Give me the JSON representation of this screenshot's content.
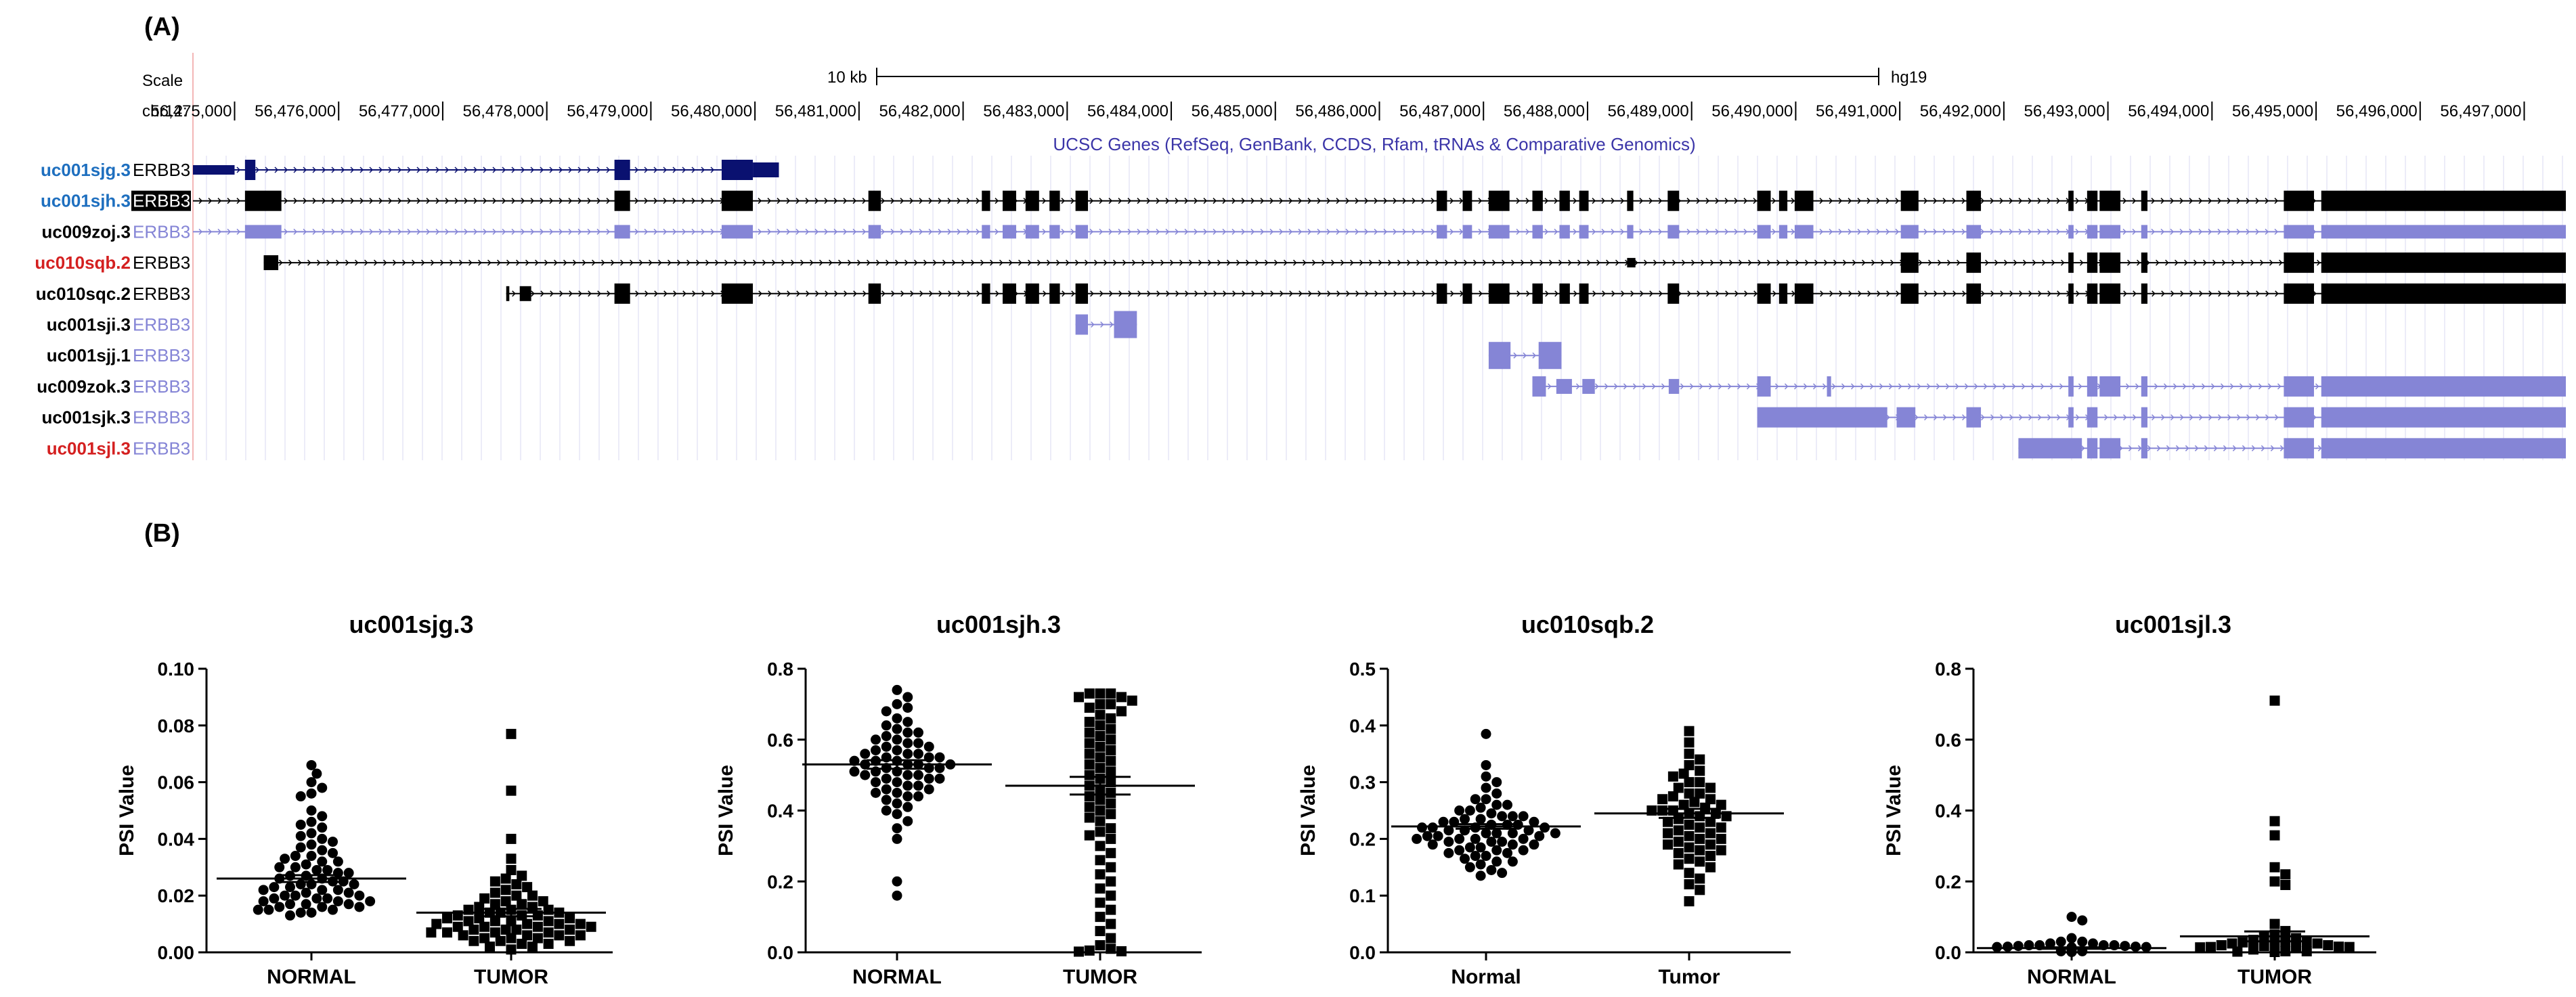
{
  "figure": {
    "panel_a_label": "(A)",
    "panel_b_label": "(B)"
  },
  "browser": {
    "scale_label": "Scale",
    "scale_bar_label": "10 kb",
    "assembly": "hg19",
    "chrom_label": "chr12:",
    "coordinates": [
      "56,475,000",
      "56,476,000",
      "56,477,000",
      "56,478,000",
      "56,479,000",
      "56,480,000",
      "56,481,000",
      "56,482,000",
      "56,483,000",
      "56,484,000",
      "56,485,000",
      "56,486,000",
      "56,487,000",
      "56,488,000",
      "56,489,000",
      "56,490,000",
      "56,491,000",
      "56,492,000",
      "56,493,000",
      "56,494,000",
      "56,495,000",
      "56,496,000",
      "56,497,000"
    ],
    "track_title": "UCSC Genes (RefSeq, GenBank, CCDS, Rfam, tRNAs & Comparative Genomics)",
    "colors": {
      "navy": "#0a1170",
      "black": "#000000",
      "lavender": "#8585d6",
      "blue_name": "#1e6fbf",
      "red_name": "#d42020",
      "gene_title": "#3b35a8",
      "grid": "#d8d8f0"
    },
    "transcripts": [
      {
        "name": "uc001sjg.3",
        "gene": "ERBB3",
        "name_color": "#1e6fbf",
        "color": "#0a1170",
        "label_box": false
      },
      {
        "name": "uc001sjh.3",
        "gene": "ERBB3",
        "name_color": "#1e6fbf",
        "color": "#000000",
        "label_box": true
      },
      {
        "name": "uc009zoj.3",
        "gene": "ERBB3",
        "name_color": "#000000",
        "color": "#8585d6",
        "label_box": false
      },
      {
        "name": "uc010sqb.2",
        "gene": "ERBB3",
        "name_color": "#d42020",
        "color": "#000000",
        "label_box": false
      },
      {
        "name": "uc010sqc.2",
        "gene": "ERBB3",
        "name_color": "#000000",
        "color": "#000000",
        "label_box": false
      },
      {
        "name": "uc001sji.3",
        "gene": "ERBB3",
        "name_color": "#000000",
        "color": "#8585d6",
        "label_box": false
      },
      {
        "name": "uc001sjj.1",
        "gene": "ERBB3",
        "name_color": "#000000",
        "color": "#8585d6",
        "label_box": false
      },
      {
        "name": "uc009zok.3",
        "gene": "ERBB3",
        "name_color": "#000000",
        "color": "#8585d6",
        "label_box": false
      },
      {
        "name": "uc001sjk.3",
        "gene": "ERBB3",
        "name_color": "#000000",
        "color": "#8585d6",
        "label_box": false
      },
      {
        "name": "uc001sjl.3",
        "gene": "ERBB3",
        "name_color": "#d42020",
        "color": "#8585d6",
        "label_box": false
      }
    ]
  },
  "chart_data": [
    {
      "type": "scatter",
      "title": "uc001sjg.3",
      "ylabel": "PSI Value",
      "categories": [
        "NORMAL",
        "TUMOR"
      ],
      "ylim": [
        0,
        0.1
      ],
      "yticks": [
        "0.00",
        "0.02",
        "0.04",
        "0.06",
        "0.08",
        "0.10"
      ],
      "markers": [
        "circle",
        "square"
      ],
      "means": [
        0.026,
        0.014
      ],
      "sem": [
        0.0012,
        0.0013
      ],
      "series": [
        {
          "values": [
            0.066,
            0.063,
            0.06,
            0.058,
            0.056,
            0.055,
            0.05,
            0.048,
            0.046,
            0.045,
            0.044,
            0.042,
            0.041,
            0.04,
            0.039,
            0.038,
            0.037,
            0.036,
            0.035,
            0.034,
            0.034,
            0.033,
            0.032,
            0.032,
            0.031,
            0.03,
            0.03,
            0.029,
            0.029,
            0.028,
            0.028,
            0.027,
            0.027,
            0.026,
            0.026,
            0.025,
            0.025,
            0.024,
            0.024,
            0.024,
            0.023,
            0.023,
            0.022,
            0.022,
            0.022,
            0.021,
            0.021,
            0.02,
            0.02,
            0.02,
            0.019,
            0.019,
            0.019,
            0.018,
            0.018,
            0.018,
            0.017,
            0.017,
            0.017,
            0.016,
            0.016,
            0.016,
            0.015,
            0.015,
            0.015,
            0.014,
            0.014,
            0.013
          ]
        },
        {
          "values": [
            0.077,
            0.057,
            0.04,
            0.033,
            0.029,
            0.027,
            0.026,
            0.025,
            0.024,
            0.023,
            0.022,
            0.021,
            0.02,
            0.02,
            0.019,
            0.018,
            0.018,
            0.017,
            0.017,
            0.016,
            0.016,
            0.015,
            0.015,
            0.015,
            0.014,
            0.014,
            0.014,
            0.013,
            0.013,
            0.013,
            0.012,
            0.012,
            0.012,
            0.011,
            0.011,
            0.011,
            0.011,
            0.01,
            0.01,
            0.01,
            0.01,
            0.009,
            0.009,
            0.009,
            0.009,
            0.008,
            0.008,
            0.008,
            0.008,
            0.007,
            0.007,
            0.007,
            0.007,
            0.006,
            0.006,
            0.006,
            0.006,
            0.005,
            0.005,
            0.005,
            0.004,
            0.004,
            0.004,
            0.003,
            0.003,
            0.002,
            0.002,
            0.001
          ]
        }
      ]
    },
    {
      "type": "scatter",
      "title": "uc001sjh.3",
      "ylabel": "PSI Value",
      "categories": [
        "NORMAL",
        "TUMOR"
      ],
      "ylim": [
        0,
        0.8
      ],
      "yticks": [
        "0.0",
        "0.2",
        "0.4",
        "0.6",
        "0.8"
      ],
      "markers": [
        "circle",
        "square"
      ],
      "means": [
        0.53,
        0.47
      ],
      "sem": [
        0.012,
        0.025
      ],
      "series": [
        {
          "values": [
            0.74,
            0.72,
            0.7,
            0.69,
            0.68,
            0.66,
            0.65,
            0.64,
            0.63,
            0.62,
            0.62,
            0.61,
            0.6,
            0.6,
            0.59,
            0.59,
            0.58,
            0.58,
            0.57,
            0.57,
            0.56,
            0.56,
            0.56,
            0.55,
            0.55,
            0.55,
            0.54,
            0.54,
            0.54,
            0.53,
            0.53,
            0.53,
            0.53,
            0.52,
            0.52,
            0.52,
            0.51,
            0.51,
            0.51,
            0.5,
            0.5,
            0.5,
            0.49,
            0.49,
            0.49,
            0.48,
            0.48,
            0.47,
            0.47,
            0.46,
            0.46,
            0.45,
            0.45,
            0.44,
            0.44,
            0.43,
            0.42,
            0.41,
            0.4,
            0.39,
            0.37,
            0.35,
            0.32,
            0.2,
            0.16
          ]
        },
        {
          "values": [
            0.73,
            0.73,
            0.73,
            0.72,
            0.72,
            0.71,
            0.7,
            0.7,
            0.69,
            0.68,
            0.67,
            0.66,
            0.65,
            0.64,
            0.63,
            0.62,
            0.61,
            0.6,
            0.59,
            0.58,
            0.57,
            0.56,
            0.55,
            0.54,
            0.53,
            0.52,
            0.51,
            0.5,
            0.49,
            0.48,
            0.47,
            0.46,
            0.45,
            0.44,
            0.43,
            0.42,
            0.41,
            0.4,
            0.39,
            0.38,
            0.37,
            0.35,
            0.34,
            0.33,
            0.32,
            0.3,
            0.28,
            0.26,
            0.24,
            0.22,
            0.2,
            0.18,
            0.16,
            0.14,
            0.12,
            0.1,
            0.08,
            0.06,
            0.04,
            0.02,
            0.01,
            0.005,
            0.003,
            0.002
          ]
        }
      ]
    },
    {
      "type": "scatter",
      "title": "uc010sqb.2",
      "ylabel": "PSI Value",
      "categories": [
        "Normal",
        "Tumor"
      ],
      "ylim": [
        0,
        0.5
      ],
      "yticks": [
        "0.0",
        "0.1",
        "0.2",
        "0.3",
        "0.4",
        "0.5"
      ],
      "markers": [
        "circle",
        "square"
      ],
      "means": [
        0.222,
        0.245
      ],
      "sem": [
        0.004,
        0.008
      ],
      "series": [
        {
          "values": [
            0.385,
            0.33,
            0.31,
            0.3,
            0.29,
            0.28,
            0.27,
            0.27,
            0.26,
            0.26,
            0.255,
            0.25,
            0.25,
            0.245,
            0.24,
            0.24,
            0.24,
            0.235,
            0.235,
            0.23,
            0.23,
            0.23,
            0.225,
            0.225,
            0.225,
            0.22,
            0.22,
            0.22,
            0.22,
            0.215,
            0.215,
            0.215,
            0.21,
            0.21,
            0.21,
            0.21,
            0.205,
            0.205,
            0.205,
            0.2,
            0.2,
            0.2,
            0.2,
            0.195,
            0.195,
            0.195,
            0.19,
            0.19,
            0.19,
            0.185,
            0.185,
            0.18,
            0.18,
            0.18,
            0.175,
            0.175,
            0.17,
            0.17,
            0.165,
            0.16,
            0.16,
            0.155,
            0.15,
            0.145,
            0.14,
            0.135
          ]
        },
        {
          "values": [
            0.39,
            0.37,
            0.35,
            0.34,
            0.33,
            0.32,
            0.315,
            0.31,
            0.3,
            0.3,
            0.29,
            0.29,
            0.28,
            0.28,
            0.275,
            0.27,
            0.27,
            0.265,
            0.26,
            0.26,
            0.255,
            0.25,
            0.25,
            0.25,
            0.245,
            0.245,
            0.24,
            0.24,
            0.235,
            0.23,
            0.23,
            0.225,
            0.22,
            0.22,
            0.215,
            0.21,
            0.21,
            0.205,
            0.2,
            0.2,
            0.195,
            0.19,
            0.19,
            0.185,
            0.18,
            0.18,
            0.175,
            0.17,
            0.165,
            0.16,
            0.155,
            0.15,
            0.14,
            0.13,
            0.12,
            0.11,
            0.09
          ]
        }
      ]
    },
    {
      "type": "scatter",
      "title": "uc001sjl.3",
      "ylabel": "PSI Value",
      "categories": [
        "NORMAL",
        "TUMOR"
      ],
      "ylim": [
        0,
        0.8
      ],
      "yticks": [
        "0.0",
        "0.2",
        "0.4",
        "0.6",
        "0.8"
      ],
      "markers": [
        "circle",
        "square"
      ],
      "means": [
        0.012,
        0.045
      ],
      "sem": [
        0.002,
        0.014
      ],
      "series": [
        {
          "values": [
            0.1,
            0.09,
            0.04,
            0.03,
            0.03,
            0.025,
            0.025,
            0.02,
            0.02,
            0.02,
            0.02,
            0.018,
            0.018,
            0.016,
            0.016,
            0.015,
            0.015,
            0.014,
            0.014,
            0.013,
            0.013,
            0.012,
            0.012,
            0.012,
            0.011,
            0.011,
            0.011,
            0.01,
            0.01,
            0.01,
            0.009,
            0.009,
            0.009,
            0.008,
            0.008,
            0.008,
            0.007,
            0.007,
            0.007,
            0.006,
            0.006,
            0.006,
            0.005,
            0.005,
            0.005,
            0.004,
            0.004,
            0.004,
            0.003,
            0.003,
            0.003,
            0.002,
            0.002,
            0.002,
            0.001,
            0.001
          ]
        },
        {
          "values": [
            0.71,
            0.37,
            0.33,
            0.24,
            0.22,
            0.2,
            0.19,
            0.08,
            0.06,
            0.05,
            0.045,
            0.04,
            0.035,
            0.03,
            0.03,
            0.028,
            0.025,
            0.025,
            0.022,
            0.02,
            0.02,
            0.018,
            0.016,
            0.015,
            0.015,
            0.014,
            0.013,
            0.012,
            0.012,
            0.011,
            0.01,
            0.01,
            0.009,
            0.009,
            0.008,
            0.008,
            0.007,
            0.007,
            0.006,
            0.006,
            0.005,
            0.005,
            0.005,
            0.004,
            0.004,
            0.003,
            0.003,
            0.003,
            0.002,
            0.002,
            0.002,
            0.001,
            0.001,
            0.001
          ]
        }
      ]
    }
  ]
}
